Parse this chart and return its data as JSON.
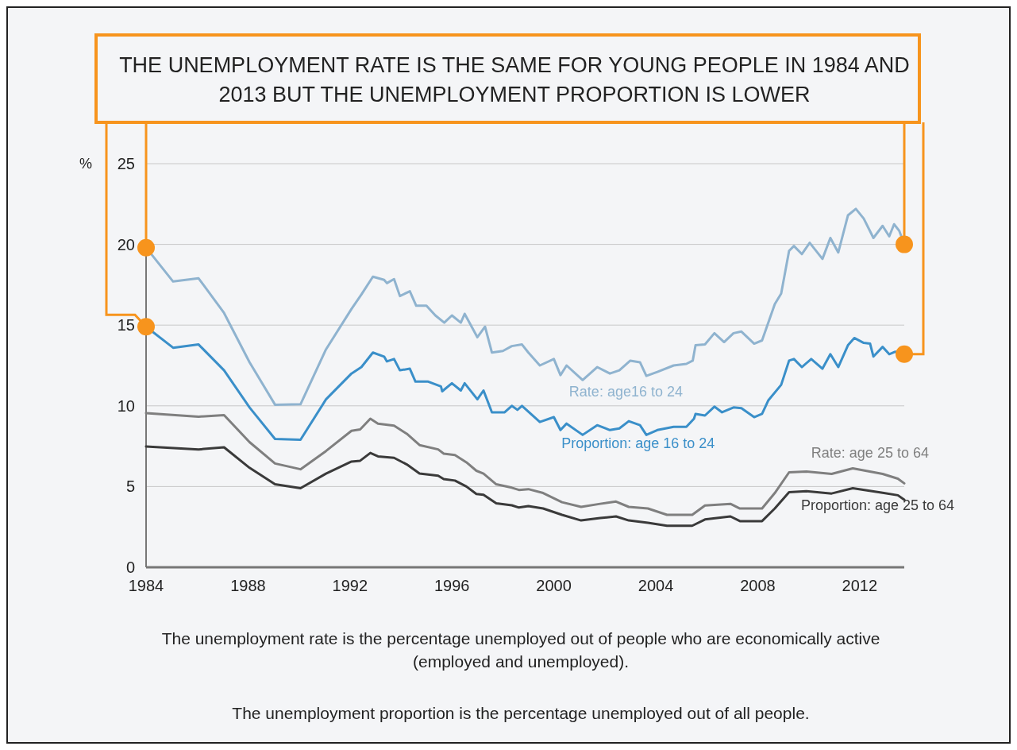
{
  "chart_data": {
    "type": "line",
    "title": "THE UNEMPLOYMENT RATE IS THE SAME FOR YOUNG PEOPLE IN 1984 AND 2013 BUT THE UNEMPLOYMENT PROPORTION IS LOWER",
    "ylabel": "%",
    "xlim": [
      1984,
      2013.75
    ],
    "xticks": [
      1984,
      1988,
      1992,
      1996,
      2000,
      2004,
      2008,
      2012
    ],
    "ylim": [
      0,
      25
    ],
    "yticks": [
      0,
      5,
      10,
      15,
      20,
      25
    ],
    "grid": "y",
    "line_style": "solid",
    "annotations": [
      "The unemployment rate is the percentage unemployed out of people who are economically active (employed and unemployed).",
      "The unemployment proportion is the percentage unemployed out of all people."
    ],
    "series": [
      {
        "name": "Rate: age16 to 24",
        "color": "#8fb3cf",
        "x": [
          1984,
          1985.06,
          1986.06,
          1987.06,
          1988.06,
          1989.06,
          1990.06,
          1991.06,
          1992.06,
          1992.45,
          1992.9,
          1993.34,
          1993.45,
          1993.73,
          1993.96,
          1994.35,
          1994.6,
          1995.0,
          1995.35,
          1995.7,
          1996.0,
          1996.35,
          1996.5,
          1997.0,
          1997.3,
          1997.57,
          1998.0,
          1998.35,
          1998.75,
          1999.0,
          1999.45,
          2000.0,
          2000.26,
          2000.5,
          2001.13,
          2001.7,
          2002.2,
          2002.57,
          2003.0,
          2003.38,
          2003.63,
          2004.06,
          2004.7,
          2005.2,
          2005.45,
          2005.56,
          2005.93,
          2006.3,
          2006.68,
          2007.05,
          2007.36,
          2007.86,
          2008.17,
          2008.67,
          2008.92,
          2009.23,
          2009.42,
          2009.73,
          2010.04,
          2010.54,
          2010.85,
          2011.16,
          2011.54,
          2011.85,
          2012.16,
          2012.54,
          2012.9,
          2013.16,
          2013.35,
          2013.55,
          2013.75
        ],
        "values": [
          19.8,
          17.7,
          17.9,
          15.75,
          12.7,
          10.07,
          10.1,
          13.5,
          16.0,
          16.9,
          18.0,
          17.8,
          17.6,
          17.85,
          16.8,
          17.1,
          16.2,
          16.2,
          15.6,
          15.15,
          15.6,
          15.15,
          15.7,
          14.25,
          14.9,
          13.3,
          13.4,
          13.7,
          13.8,
          13.3,
          12.5,
          12.9,
          11.9,
          12.5,
          11.6,
          12.4,
          12.0,
          12.2,
          12.8,
          12.7,
          11.85,
          12.1,
          12.5,
          12.6,
          12.8,
          13.75,
          13.8,
          14.5,
          13.95,
          14.5,
          14.6,
          13.85,
          14.05,
          16.3,
          16.95,
          19.6,
          19.9,
          19.4,
          20.1,
          19.1,
          20.4,
          19.5,
          21.8,
          22.2,
          21.6,
          20.4,
          21.15,
          20.5,
          21.25,
          20.85,
          20.0
        ]
      },
      {
        "name": "Proportion: age 16 to 24",
        "color": "#3a8fc9",
        "x": [
          1984,
          1985.06,
          1986.06,
          1987.06,
          1988.06,
          1989.06,
          1990.06,
          1991.06,
          1992.06,
          1992.45,
          1992.9,
          1993.34,
          1993.45,
          1993.73,
          1993.96,
          1994.35,
          1994.57,
          1995.07,
          1995.57,
          1995.62,
          1996.0,
          1996.35,
          1996.5,
          1997.0,
          1997.24,
          1997.57,
          1998.07,
          1998.35,
          1998.57,
          1998.75,
          1999.45,
          2000.0,
          2000.26,
          2000.5,
          2001.13,
          2001.7,
          2002.2,
          2002.57,
          2002.94,
          2003.38,
          2003.63,
          2004.06,
          2004.7,
          2005.2,
          2005.5,
          2005.56,
          2005.93,
          2006.3,
          2006.6,
          2007.05,
          2007.36,
          2007.86,
          2008.17,
          2008.42,
          2008.92,
          2009.23,
          2009.42,
          2009.73,
          2010.1,
          2010.54,
          2010.85,
          2011.16,
          2011.54,
          2011.79,
          2012.16,
          2012.41,
          2012.54,
          2012.9,
          2013.16,
          2013.4,
          2013.75
        ],
        "values": [
          14.9,
          13.6,
          13.8,
          12.2,
          9.9,
          7.95,
          7.9,
          10.4,
          12.0,
          12.4,
          13.3,
          13.05,
          12.75,
          12.9,
          12.2,
          12.3,
          11.5,
          11.5,
          11.2,
          10.9,
          11.4,
          10.95,
          11.4,
          10.4,
          10.95,
          9.6,
          9.6,
          10.0,
          9.75,
          10.0,
          9.0,
          9.3,
          8.5,
          8.9,
          8.2,
          8.8,
          8.5,
          8.6,
          9.05,
          8.8,
          8.2,
          8.5,
          8.7,
          8.7,
          9.2,
          9.5,
          9.4,
          9.95,
          9.6,
          9.9,
          9.85,
          9.3,
          9.5,
          10.35,
          11.3,
          12.8,
          12.9,
          12.4,
          12.9,
          12.3,
          13.2,
          12.4,
          13.75,
          14.2,
          13.9,
          13.85,
          13.05,
          13.65,
          13.2,
          13.35,
          13.2
        ]
      },
      {
        "name": "Rate: age 25 to 64",
        "color": "#7f7f7f",
        "x": [
          1984,
          1986.06,
          1987.06,
          1988.06,
          1989.06,
          1990.06,
          1991.06,
          1992.06,
          1992.4,
          1992.8,
          1993.1,
          1993.73,
          1994.23,
          1994.73,
          1995.46,
          1995.68,
          1996.12,
          1996.57,
          1996.96,
          1997.24,
          1997.74,
          1998.35,
          1998.63,
          1999.0,
          1999.58,
          2000.32,
          2001.07,
          2001.82,
          2002.44,
          2002.94,
          2003.69,
          2004.44,
          2005.43,
          2005.93,
          2006.93,
          2007.3,
          2008.17,
          2008.67,
          2009.23,
          2009.91,
          2010.9,
          2011.73,
          2012.9,
          2013.5,
          2013.75
        ],
        "values": [
          9.55,
          9.33,
          9.42,
          7.75,
          6.43,
          6.07,
          7.2,
          8.45,
          8.54,
          9.2,
          8.9,
          8.77,
          8.27,
          7.57,
          7.3,
          7.04,
          6.95,
          6.5,
          5.98,
          5.8,
          5.14,
          4.93,
          4.79,
          4.84,
          4.6,
          4.03,
          3.74,
          3.93,
          4.07,
          3.74,
          3.64,
          3.25,
          3.25,
          3.83,
          3.93,
          3.64,
          3.64,
          4.6,
          5.88,
          5.93,
          5.78,
          6.13,
          5.78,
          5.49,
          5.2
        ]
      },
      {
        "name": "Proportion: age 25 to 64",
        "color": "#3a3a3a",
        "x": [
          1984,
          1986.06,
          1987.06,
          1988.06,
          1989.06,
          1990.06,
          1991.06,
          1992.06,
          1992.4,
          1992.8,
          1993.1,
          1993.73,
          1994.23,
          1994.73,
          1995.46,
          1995.68,
          1996.12,
          1996.57,
          1996.96,
          1997.24,
          1997.74,
          1998.35,
          1998.63,
          1999.0,
          1999.58,
          2000.32,
          2001.07,
          2001.82,
          2002.44,
          2002.94,
          2003.69,
          2004.44,
          2005.43,
          2005.93,
          2006.93,
          2007.3,
          2008.17,
          2008.67,
          2009.23,
          2009.91,
          2010.9,
          2011.73,
          2012.9,
          2013.5,
          2013.75
        ],
        "values": [
          7.48,
          7.3,
          7.43,
          6.16,
          5.14,
          4.9,
          5.8,
          6.55,
          6.6,
          7.08,
          6.87,
          6.78,
          6.37,
          5.81,
          5.67,
          5.46,
          5.37,
          5.0,
          4.54,
          4.49,
          3.96,
          3.84,
          3.7,
          3.79,
          3.64,
          3.25,
          2.9,
          3.05,
          3.15,
          2.9,
          2.76,
          2.57,
          2.57,
          2.96,
          3.15,
          2.86,
          2.86,
          3.64,
          4.65,
          4.71,
          4.57,
          4.9,
          4.61,
          4.46,
          4.18
        ]
      }
    ]
  }
}
